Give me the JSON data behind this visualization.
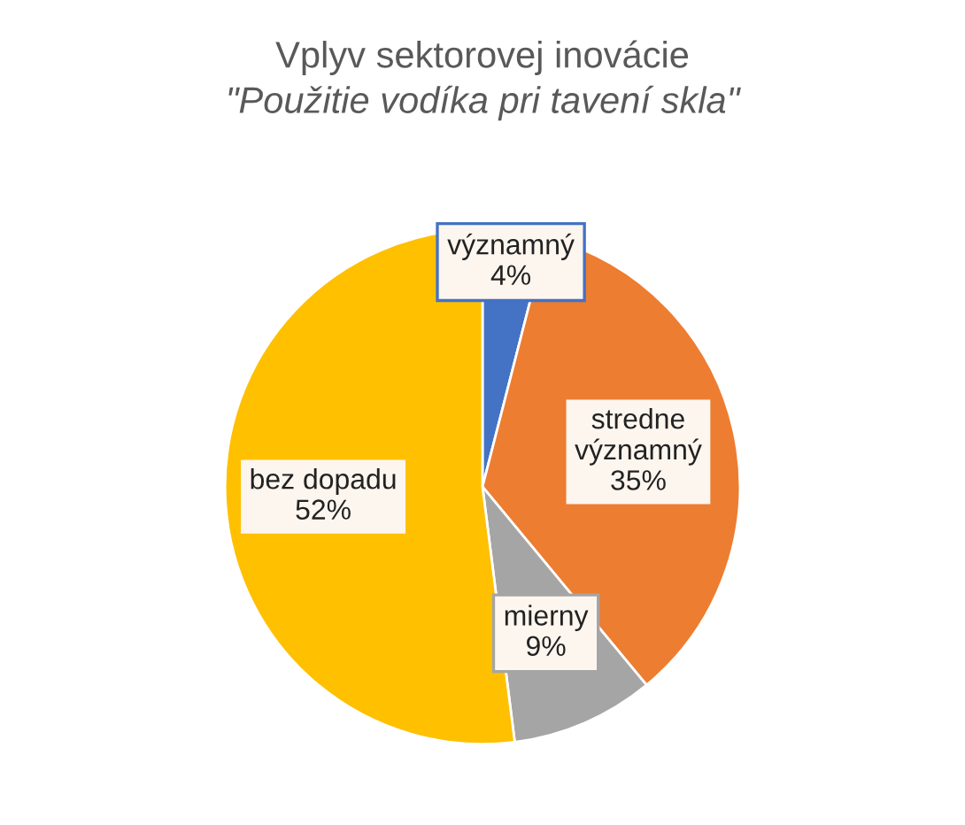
{
  "chart_data": {
    "type": "pie",
    "title": "Vplyv sektorovej inovácie",
    "subtitle": "\"Použitie vodíka pri tavení skla\"",
    "categories": [
      "významný",
      "stredne významný",
      "mierny",
      "bez dopadu"
    ],
    "values": [
      4,
      35,
      9,
      52
    ],
    "value_labels": [
      "4%",
      "35%",
      "9%",
      "52%"
    ],
    "colors": [
      "#4472c4",
      "#ed7d31",
      "#a5a5a5",
      "#ffc000"
    ],
    "legend": false
  }
}
